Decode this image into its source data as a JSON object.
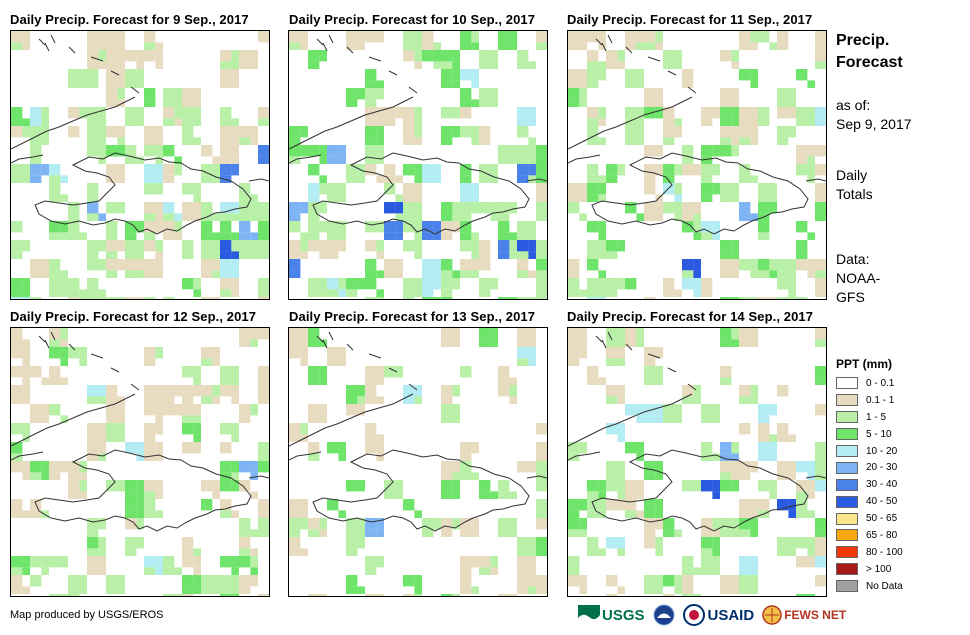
{
  "panels": [
    {
      "title": "Daily Precip. Forecast for 9 Sep., 2017",
      "seed": 11,
      "wet": 0.85,
      "heavy": 0.35
    },
    {
      "title": "Daily Precip. Forecast for 10 Sep., 2017",
      "seed": 23,
      "wet": 0.9,
      "heavy": 0.35
    },
    {
      "title": "Daily Precip. Forecast for 11 Sep., 2017",
      "seed": 37,
      "wet": 0.6,
      "heavy": 0.2
    },
    {
      "title": "Daily Precip. Forecast for 12 Sep., 2017",
      "seed": 41,
      "wet": 0.6,
      "heavy": 0.15
    },
    {
      "title": "Daily Precip. Forecast for 13 Sep., 2017",
      "seed": 53,
      "wet": 0.45,
      "heavy": 0.1
    },
    {
      "title": "Daily Precip. Forecast for 14 Sep., 2017",
      "seed": 67,
      "wet": 0.55,
      "heavy": 0.4
    }
  ],
  "side": {
    "title_line1": "Precip.",
    "title_line2": "Forecast",
    "asof_line1": "as of:",
    "asof_line2": "Sep 9, 2017",
    "daily_line1": "Daily",
    "daily_line2": "Totals",
    "data_line1": "Data:",
    "data_line2": "NOAA-",
    "data_line3": "GFS"
  },
  "legend": {
    "title": "PPT (mm)",
    "items": [
      {
        "label": "0 - 0.1",
        "color": "#ffffff"
      },
      {
        "label": "0.1 - 1",
        "color": "#e8dcc0"
      },
      {
        "label": "1 - 5",
        "color": "#b8f0a8"
      },
      {
        "label": "5 - 10",
        "color": "#6ee46a"
      },
      {
        "label": "10 - 20",
        "color": "#b4ecf4"
      },
      {
        "label": "20 - 30",
        "color": "#7eb4f4"
      },
      {
        "label": "30 - 40",
        "color": "#4a82ea"
      },
      {
        "label": "40 - 50",
        "color": "#2a5ae0"
      },
      {
        "label": "50 - 65",
        "color": "#fce68c"
      },
      {
        "label": "65 - 80",
        "color": "#f7a80c"
      },
      {
        "label": "80 - 100",
        "color": "#f23a0a"
      },
      {
        "label": "> 100",
        "color": "#a81a1a"
      },
      {
        "label": "No Data",
        "color": "#a0a0a0"
      }
    ]
  },
  "footer": {
    "credit": "Map produced by USGS/EROS",
    "logos": [
      "USGS",
      "NOAA",
      "USAID",
      "FEWS NET"
    ]
  }
}
